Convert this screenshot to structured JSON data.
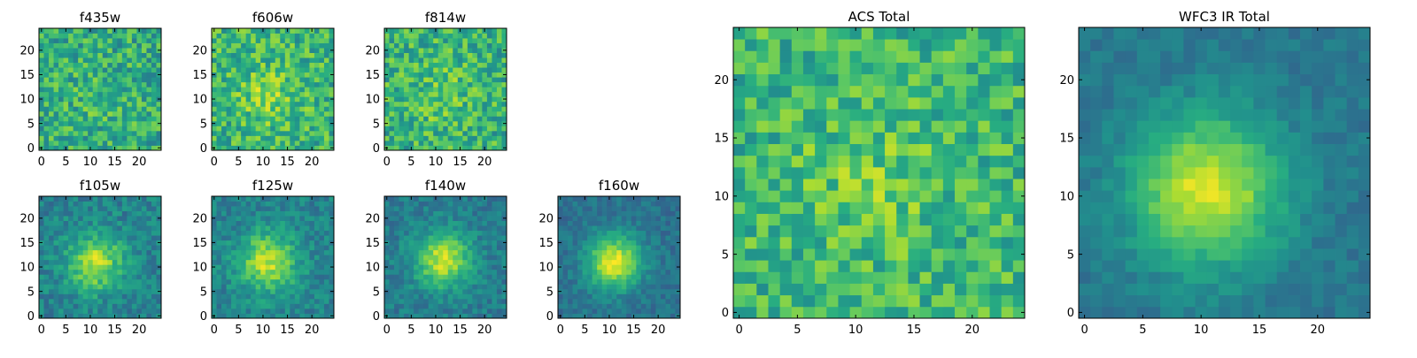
{
  "chart_data": [
    {
      "type": "heatmap",
      "title": "f435w",
      "colormap": "viridis",
      "grid": false,
      "image_size": [
        25,
        25
      ],
      "xlim": [
        -0.5,
        24.5
      ],
      "ylim": [
        -0.5,
        24.5
      ],
      "xticks": [
        0,
        5,
        10,
        15,
        20
      ],
      "yticks": [
        0,
        5,
        10,
        15,
        20
      ],
      "source_profile": {
        "center_x": 11,
        "center_y": 11,
        "sigma": 4.5,
        "peak": 0.05,
        "base": 0.62,
        "noise": 0.2
      }
    },
    {
      "type": "heatmap",
      "title": "f606w",
      "colormap": "viridis",
      "grid": false,
      "image_size": [
        25,
        25
      ],
      "xlim": [
        -0.5,
        24.5
      ],
      "ylim": [
        -0.5,
        24.5
      ],
      "xticks": [
        0,
        5,
        10,
        15,
        20
      ],
      "yticks": [
        0,
        5,
        10,
        15,
        20
      ],
      "source_profile": {
        "center_x": 11,
        "center_y": 11,
        "sigma": 4.5,
        "peak": 0.15,
        "base": 0.65,
        "noise": 0.2
      }
    },
    {
      "type": "heatmap",
      "title": "f814w",
      "colormap": "viridis",
      "grid": false,
      "image_size": [
        25,
        25
      ],
      "xlim": [
        -0.5,
        24.5
      ],
      "ylim": [
        -0.5,
        24.5
      ],
      "xticks": [
        0,
        5,
        10,
        15,
        20
      ],
      "yticks": [
        0,
        5,
        10,
        15,
        20
      ],
      "source_profile": {
        "center_x": 11,
        "center_y": 11,
        "sigma": 4.5,
        "peak": 0.12,
        "base": 0.64,
        "noise": 0.2
      }
    },
    {
      "type": "heatmap",
      "title": "f105w",
      "colormap": "viridis",
      "grid": false,
      "image_size": [
        25,
        25
      ],
      "xlim": [
        -0.5,
        24.5
      ],
      "ylim": [
        -0.5,
        24.5
      ],
      "xticks": [
        0,
        5,
        10,
        15,
        20
      ],
      "yticks": [
        0,
        5,
        10,
        15,
        20
      ],
      "source_profile": {
        "center_x": 11,
        "center_y": 11,
        "sigma": 4.0,
        "peak": 0.45,
        "base": 0.45,
        "noise": 0.12
      }
    },
    {
      "type": "heatmap",
      "title": "f125w",
      "colormap": "viridis",
      "grid": false,
      "image_size": [
        25,
        25
      ],
      "xlim": [
        -0.5,
        24.5
      ],
      "ylim": [
        -0.5,
        24.5
      ],
      "xticks": [
        0,
        5,
        10,
        15,
        20
      ],
      "yticks": [
        0,
        5,
        10,
        15,
        20
      ],
      "source_profile": {
        "center_x": 11,
        "center_y": 11,
        "sigma": 4.2,
        "peak": 0.45,
        "base": 0.45,
        "noise": 0.11
      }
    },
    {
      "type": "heatmap",
      "title": "f140w",
      "colormap": "viridis",
      "grid": false,
      "image_size": [
        25,
        25
      ],
      "xlim": [
        -0.5,
        24.5
      ],
      "ylim": [
        -0.5,
        24.5
      ],
      "xticks": [
        0,
        5,
        10,
        15,
        20
      ],
      "yticks": [
        0,
        5,
        10,
        15,
        20
      ],
      "source_profile": {
        "center_x": 11.5,
        "center_y": 11.5,
        "sigma": 4.0,
        "peak": 0.5,
        "base": 0.42,
        "noise": 0.1
      }
    },
    {
      "type": "heatmap",
      "title": "f160w",
      "colormap": "viridis",
      "grid": false,
      "image_size": [
        25,
        25
      ],
      "xlim": [
        -0.5,
        24.5
      ],
      "ylim": [
        -0.5,
        24.5
      ],
      "xticks": [
        0,
        5,
        10,
        15,
        20
      ],
      "yticks": [
        0,
        5,
        10,
        15,
        20
      ],
      "source_profile": {
        "center_x": 11,
        "center_y": 11,
        "sigma": 3.8,
        "peak": 0.6,
        "base": 0.38,
        "noise": 0.08
      }
    },
    {
      "type": "heatmap",
      "title": "ACS Total",
      "colormap": "viridis",
      "grid": false,
      "image_size": [
        25,
        25
      ],
      "xlim": [
        -0.5,
        24.5
      ],
      "ylim": [
        -0.5,
        24.5
      ],
      "xticks": [
        0,
        5,
        10,
        15,
        20
      ],
      "yticks": [
        0,
        5,
        10,
        15,
        20
      ],
      "source_profile": {
        "center_x": 11,
        "center_y": 11,
        "sigma": 4.5,
        "peak": 0.1,
        "base": 0.66,
        "noise": 0.18
      }
    },
    {
      "type": "heatmap",
      "title": "WFC3 IR Total",
      "colormap": "viridis",
      "grid": false,
      "image_size": [
        25,
        25
      ],
      "xlim": [
        -0.5,
        24.5
      ],
      "ylim": [
        -0.5,
        24.5
      ],
      "xticks": [
        0,
        5,
        10,
        15,
        20
      ],
      "yticks": [
        0,
        5,
        10,
        15,
        20
      ],
      "source_profile": {
        "center_x": 10.5,
        "center_y": 10.5,
        "sigma": 4.5,
        "peak": 0.55,
        "base": 0.4,
        "noise": 0.06
      }
    }
  ]
}
